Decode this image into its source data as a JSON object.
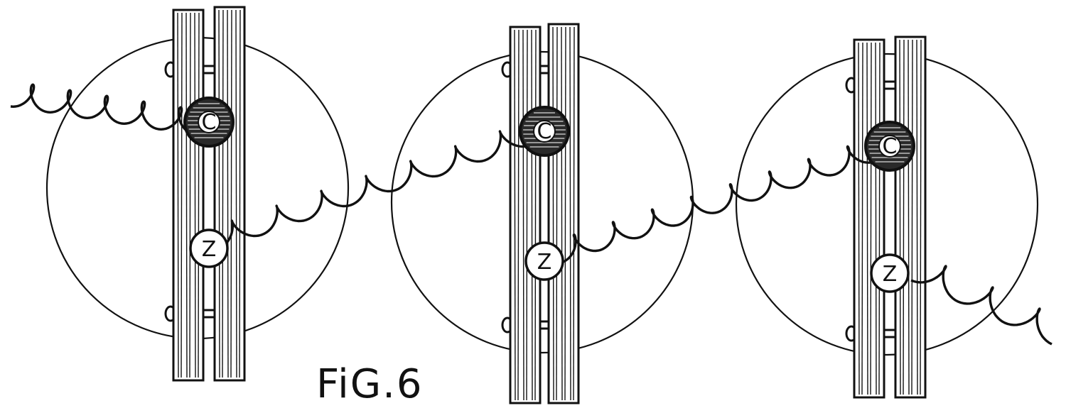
{
  "figure": {
    "caption": "FiG.6",
    "ink_color": "#111111",
    "paper_color": "#ffffff"
  },
  "cells": [
    {
      "carbon_label": "C",
      "zinc_label": "Z"
    },
    {
      "carbon_label": "C",
      "zinc_label": "Z"
    },
    {
      "carbon_label": "C",
      "zinc_label": "Z"
    }
  ]
}
